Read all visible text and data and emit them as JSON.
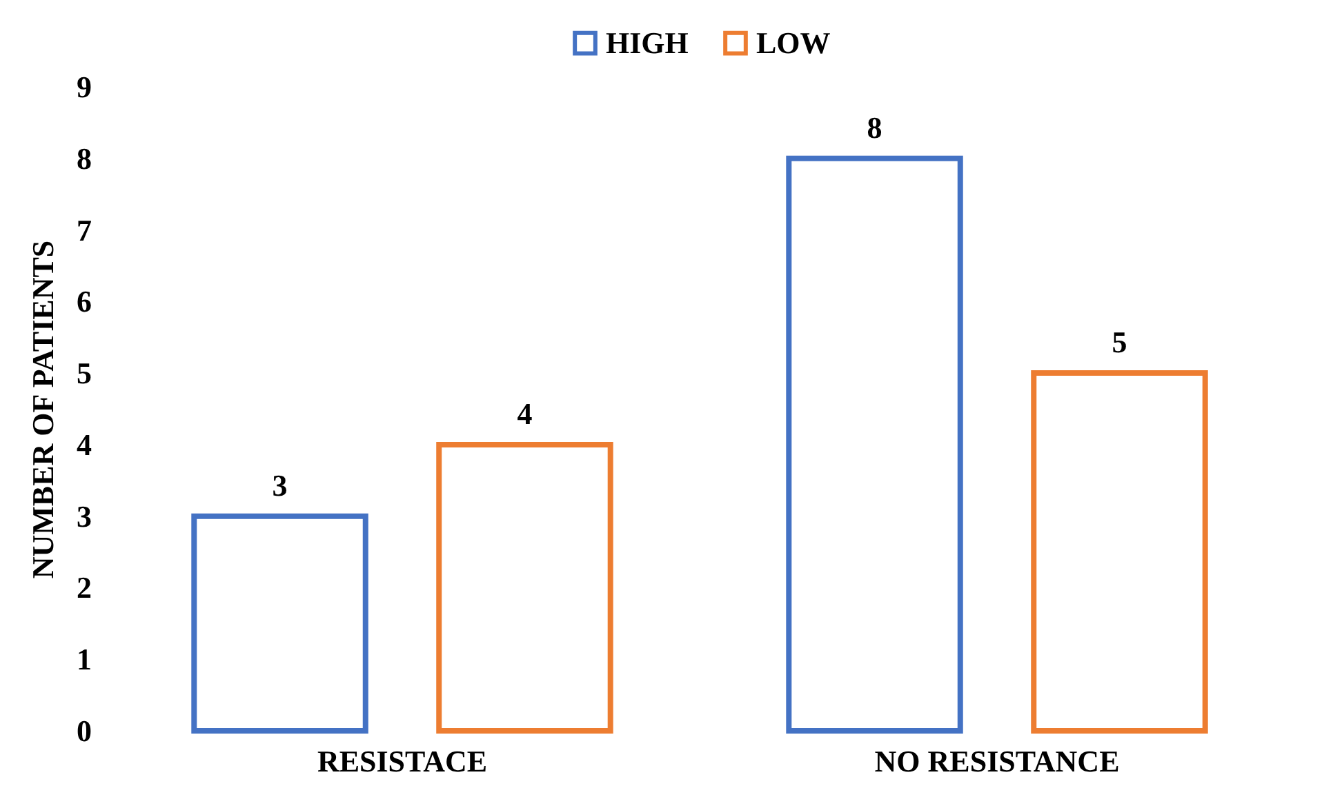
{
  "chart_data": {
    "type": "bar",
    "ylabel": "NUMBER OF PATIENTS",
    "categories": [
      "RESISTACE",
      "NO RESISTANCE"
    ],
    "series": [
      {
        "name": "HIGH",
        "color": "#4472c4",
        "values": [
          3,
          8
        ]
      },
      {
        "name": "LOW",
        "color": "#ed7d31",
        "values": [
          4,
          5
        ]
      }
    ],
    "ylim": [
      0,
      9
    ],
    "yticks": [
      0,
      1,
      2,
      3,
      4,
      5,
      6,
      7,
      8,
      9
    ],
    "grid": false,
    "legend": "top",
    "data_labels": true
  }
}
